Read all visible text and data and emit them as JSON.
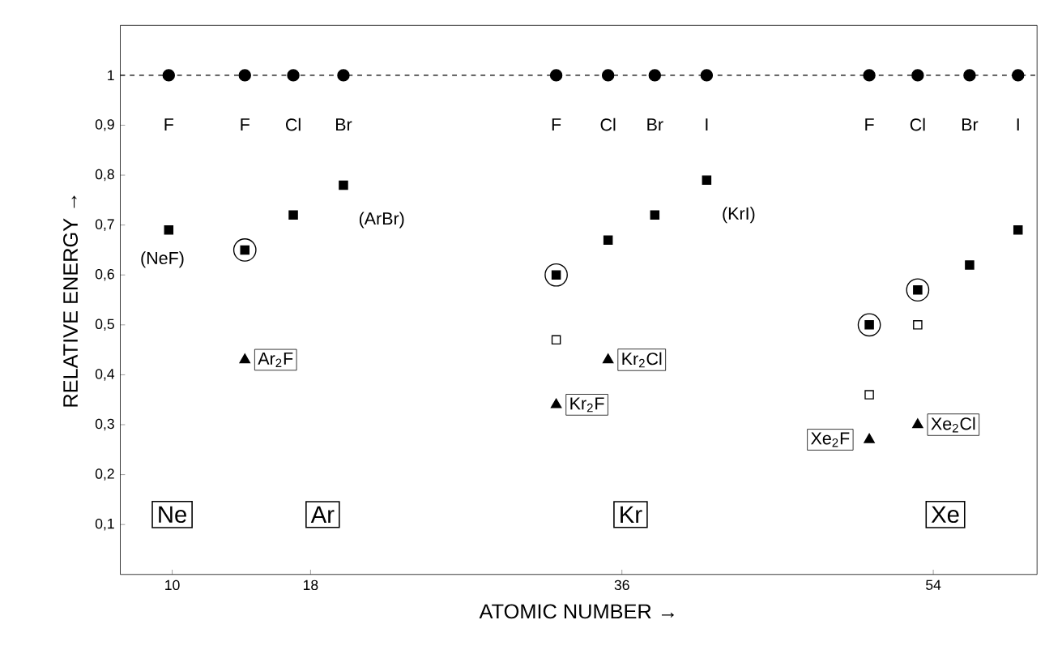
{
  "chart_data": {
    "type": "scatter",
    "xlabel": "ATOMIC NUMBER →",
    "ylabel": "RELATIVE ENERGY →",
    "xlim": [
      7,
      60
    ],
    "ylim": [
      0,
      1.1
    ],
    "xticks": [
      10,
      18,
      36,
      54
    ],
    "yticks": [
      {
        "value": 0.1,
        "label": "0,1"
      },
      {
        "value": 0.2,
        "label": "0,2"
      },
      {
        "value": 0.3,
        "label": "0,3"
      },
      {
        "value": 0.4,
        "label": "0,4"
      },
      {
        "value": 0.5,
        "label": "0,5"
      },
      {
        "value": 0.6,
        "label": "0,6"
      },
      {
        "value": 0.7,
        "label": "0,7"
      },
      {
        "value": 0.8,
        "label": "0,8"
      },
      {
        "value": 0.9,
        "label": "0,9"
      },
      1
    ],
    "grid": false,
    "ref_lines": [
      {
        "axis": "y",
        "value": 1,
        "line_style": "dashed",
        "color": "#000000"
      }
    ],
    "series": [
      {
        "marker": "circle",
        "color": "#ffffff",
        "x": [
          14.2,
          32.2,
          50.3,
          53.1
        ],
        "values": [
          0.65,
          0.6,
          0.5,
          0.57
        ]
      },
      {
        "marker": "circle",
        "color": "#000000",
        "x": [
          9.8,
          14.2,
          17.0,
          19.9,
          32.2,
          35.2,
          37.9,
          40.9,
          50.3,
          53.1,
          56.1,
          58.9
        ],
        "values": [
          1,
          1,
          1,
          1,
          1,
          1,
          1,
          1,
          1,
          1,
          1,
          1
        ]
      },
      {
        "marker": "square",
        "color": "#000000",
        "x": [
          9.8,
          14.2,
          17.0,
          19.9,
          32.2,
          35.2,
          37.9,
          40.9,
          50.3,
          53.1,
          56.1,
          58.9
        ],
        "values": [
          0.69,
          0.65,
          0.72,
          0.78,
          0.6,
          0.67,
          0.72,
          0.79,
          0.5,
          0.57,
          0.62,
          0.69
        ]
      },
      {
        "marker": "square",
        "color": "#ffffff",
        "x": [
          32.2,
          50.3,
          53.1
        ],
        "values": [
          0.47,
          0.36,
          0.5
        ]
      },
      {
        "marker": "triangle",
        "color": "#000000",
        "x": [
          14.2,
          32.2,
          35.2,
          50.3,
          53.1
        ],
        "values": [
          0.43,
          0.34,
          0.43,
          0.27,
          0.3
        ]
      }
    ],
    "annotations": [
      {
        "text": "F",
        "x": 9.8,
        "y": 1
      },
      {
        "text": "F",
        "x": 14.2,
        "y": 1
      },
      {
        "text": "Cl",
        "x": 17.0,
        "y": 1
      },
      {
        "text": "Br",
        "x": 19.9,
        "y": 1
      },
      {
        "text": "F",
        "x": 32.2,
        "y": 1
      },
      {
        "text": "Cl",
        "x": 35.2,
        "y": 1
      },
      {
        "text": "Br",
        "x": 37.9,
        "y": 1
      },
      {
        "text": "I",
        "x": 40.9,
        "y": 1
      },
      {
        "text": "F",
        "x": 50.3,
        "y": 1
      },
      {
        "text": "Cl",
        "x": 53.1,
        "y": 1
      },
      {
        "text": "Br",
        "x": 56.1,
        "y": 1
      },
      {
        "text": "I",
        "x": 58.9,
        "y": 1
      },
      {
        "text": "(NeF)",
        "x": 9.8,
        "y": 0.69
      },
      {
        "text": "(ArBr)",
        "x": 19.9,
        "y": 0.78
      },
      {
        "text": "(KrI)",
        "x": 40.9,
        "y": 0.79
      },
      {
        "text": "Ar$_{2}$F",
        "x": 14.2,
        "y": 0.43
      },
      {
        "text": "Kr$_{2}$Cl",
        "x": 35.2,
        "y": 0.43
      },
      {
        "text": "Kr$_{2}$F",
        "x": 32.2,
        "y": 0.34
      },
      {
        "text": "Xe$_{2}$F",
        "x": 50.3,
        "y": 0.27
      },
      {
        "text": "Xe$_{2}$Cl",
        "x": 53.1,
        "y": 0.3
      },
      "Ne",
      "Ar",
      "Kr",
      "Xe"
    ]
  }
}
